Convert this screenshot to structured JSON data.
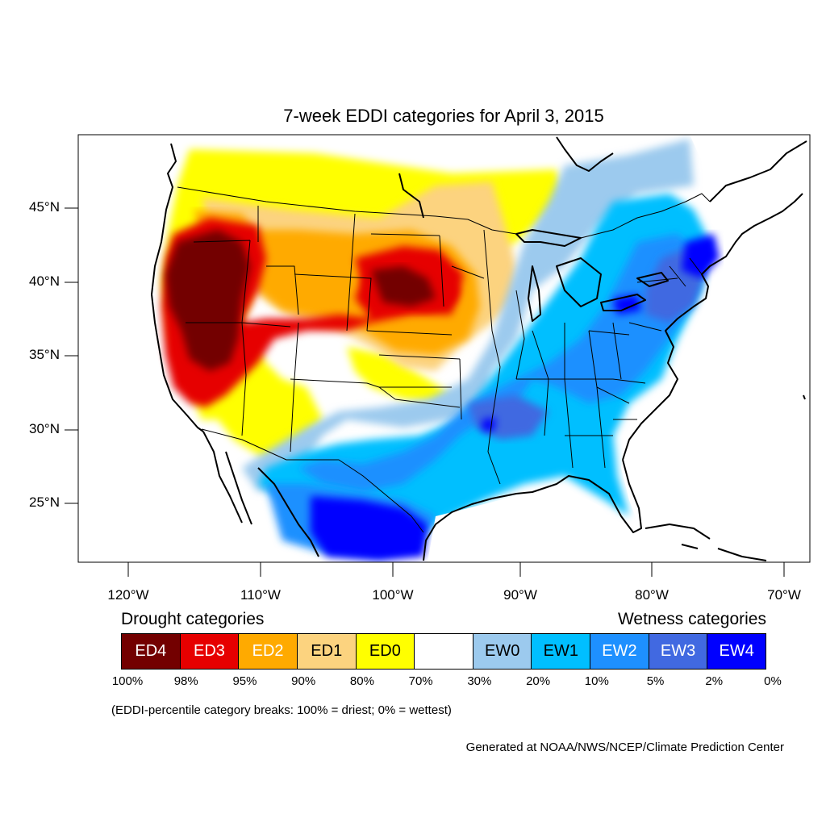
{
  "title": "7-week EDDI categories for April 3, 2015",
  "lat_labels": [
    "45°N",
    "40°N",
    "35°N",
    "30°N",
    "25°N"
  ],
  "lon_labels": [
    "120°W",
    "110°W",
    "100°W",
    "90°W",
    "80°W",
    "70°W"
  ],
  "legend": {
    "drought_heading": "Drought categories",
    "wetness_heading": "Wetness categories",
    "categories": [
      {
        "label": "ED4",
        "color": "#730000",
        "text_color": "#ffffff"
      },
      {
        "label": "ED3",
        "color": "#e60000",
        "text_color": "#ffffff"
      },
      {
        "label": "ED2",
        "color": "#ffaa00",
        "text_color": "#ffffff"
      },
      {
        "label": "ED1",
        "color": "#fcd37f",
        "text_color": "#000000"
      },
      {
        "label": "ED0",
        "color": "#ffff00",
        "text_color": "#000000"
      },
      {
        "label": "",
        "color": "#ffffff",
        "text_color": "#000000"
      },
      {
        "label": "EW0",
        "color": "#9ccaee",
        "text_color": "#000000"
      },
      {
        "label": "EW1",
        "color": "#00bfff",
        "text_color": "#000000"
      },
      {
        "label": "EW2",
        "color": "#1e90ff",
        "text_color": "#ffffff"
      },
      {
        "label": "EW3",
        "color": "#4169e1",
        "text_color": "#ffffff"
      },
      {
        "label": "EW4",
        "color": "#0000ff",
        "text_color": "#ffffff"
      }
    ],
    "percent_breaks": [
      "100%",
      "98%",
      "95%",
      "90%",
      "80%",
      "70%",
      "30%",
      "20%",
      "10%",
      "5%",
      "2%",
      "0%"
    ],
    "note": "(EDDI-percentile category breaks: 100% = driest; 0% = wettest)"
  },
  "credit": "Generated at NOAA/NWS/NCEP/Climate Prediction Center"
}
